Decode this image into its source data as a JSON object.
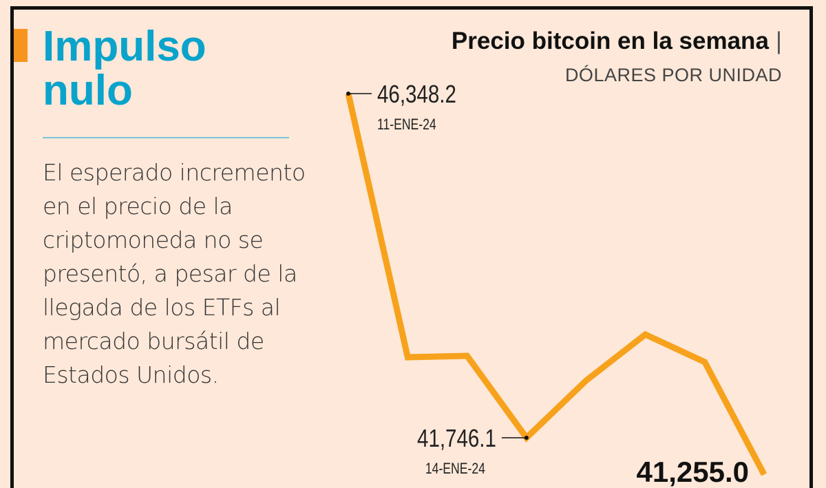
{
  "headline": "Impulso nulo",
  "headline_lines": [
    "Impulso",
    "nulo"
  ],
  "body_text": "El esperado incremento en el precio de la criptomoneda no se presentó, a pesar de la llegada de los ETFs al mercado bursátil de Estados Unidos.",
  "colors": {
    "background": "#fde8d9",
    "headline": "#0aa3cb",
    "line": "#f7a21d",
    "accent": "#f7941d",
    "frame": "#111111"
  },
  "chart_data": {
    "type": "line",
    "title": "Precio bitcoin en la semana",
    "subtitle": "DÓLARES POR UNIDAD",
    "values": [
      46348.2,
      42823,
      42841,
      41746.1,
      42509,
      43127,
      42759,
      41255
    ],
    "annotations": [
      {
        "index": 0,
        "value": "46,348.2",
        "date": "11-ENE-24"
      },
      {
        "index": 3,
        "value": "41,746.1",
        "date": "14-ENE-24"
      },
      {
        "index": 7,
        "value": "41,255.0",
        "date": ""
      }
    ],
    "ylim": [
      41000,
      46600
    ],
    "grid": false
  }
}
